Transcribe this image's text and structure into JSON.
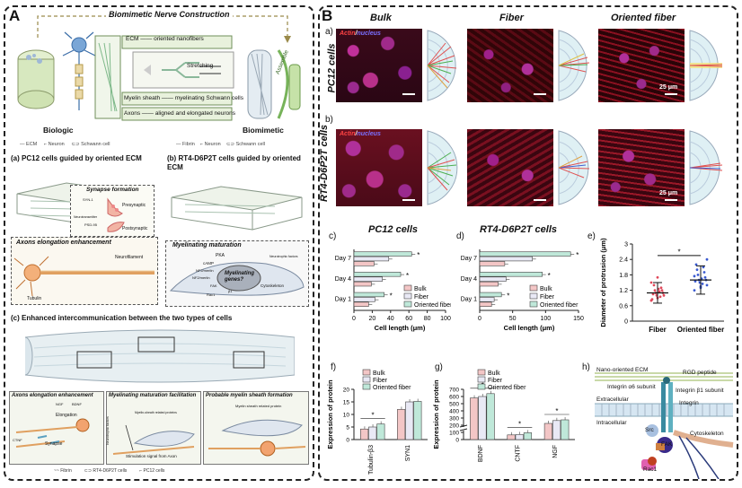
{
  "panelA": {
    "letter": "A",
    "banner": "Biomimetic Nerve Construction",
    "legend_top": [
      {
        "k": "ECM",
        "v": "oriented nanofibers"
      },
      {
        "k": "Myelin sheath",
        "v": "myelinating Schwann cells"
      },
      {
        "k": "Axons",
        "v": "aligned and elongated neurons"
      }
    ],
    "stretching": "Stretching",
    "assemble": "Assemble",
    "biologic": "Biologic",
    "biomimetic": "Biomimetic",
    "legend_left": [
      "ECM",
      "Neuron",
      "Schwann cell"
    ],
    "legend_right": [
      "Fibrin",
      "Neuron",
      "Schwann cell"
    ],
    "sub_a": "(a) PC12 cells guided by oriented ECM",
    "sub_b": "(b) RT4-D6P2T cells guided by oriented ECM",
    "synapse": {
      "title": "Synapse formation",
      "labels": [
        "SYN-1",
        "Presynaptic",
        "Neurotransmitter",
        "PSD-95",
        "Postsynaptic"
      ]
    },
    "axons": {
      "title": "Axons elongation enhancement",
      "labels": [
        "Neurofilament",
        "Tubulin"
      ]
    },
    "myel": {
      "title": "Myelinating maturation",
      "labels": [
        "PKA",
        "cAMP",
        "NF2/merlin",
        "NF2/merlin",
        "Neurotrophic factors",
        "Myelinating genes?",
        "FAK",
        "Cytoskeleton",
        "Rac1",
        "β1"
      ]
    },
    "sub_c": "(c) Enhanced intercommunication between the two types of cells",
    "bottom_boxes": [
      {
        "title": "Axons elongation enhancement",
        "labels": [
          "NGF",
          "BDNF",
          "Elongation",
          "Synapse",
          "CTNF"
        ]
      },
      {
        "title": "Myelinating maturation facilitation",
        "labels": [
          "Myelin-sheath related proteins",
          "Neurotrophic factors",
          "Stimulation signal from Axon"
        ]
      },
      {
        "title": "Probable myelin sheath formation",
        "labels": [
          "Myelin sheath related protein"
        ]
      }
    ],
    "legend_bottom": [
      "Fibrin",
      "RT4-D6P2T cells",
      "PC12 cells"
    ]
  },
  "panelB": {
    "letter": "B",
    "a_label": "a)",
    "b_label": "b)",
    "col_titles": [
      "Bulk",
      "Fiber",
      "Oriented fiber"
    ],
    "stain_actin": "Actin",
    "stain_sep": "/",
    "stain_nucleus": "nucleus",
    "row_titles": [
      "PC12 cells",
      "RT4-D6P2T cells"
    ],
    "scale": "25 μm",
    "colors": {
      "actin": "#e23b3b",
      "nucleus": "#5b4fe0",
      "bulk": "#f3c6c6",
      "fiber": "#e9e9f5",
      "oriented": "#bfe8d9"
    }
  },
  "chart_data": [
    {
      "id": "c",
      "type": "bar",
      "orientation": "horizontal",
      "panel": "c)",
      "title": "PC12 cells",
      "xlabel": "Cell length (μm)",
      "xlim": [
        0,
        100
      ],
      "xticks": [
        0,
        20,
        40,
        60,
        80,
        100
      ],
      "categories": [
        "Day 7",
        "Day 4",
        "Day 1"
      ],
      "series": [
        {
          "name": "Bulk",
          "values": [
            22,
            19,
            16
          ]
        },
        {
          "name": "Fiber",
          "values": [
            38,
            31,
            23
          ]
        },
        {
          "name": "Oriented fiber",
          "values": [
            63,
            51,
            33
          ]
        }
      ],
      "significance": [
        "*",
        "*",
        "*"
      ]
    },
    {
      "id": "d",
      "type": "bar",
      "orientation": "horizontal",
      "panel": "d)",
      "title": "RT4-D6P2T cells",
      "xlabel": "Cell length (μm)",
      "xlim": [
        0,
        150
      ],
      "xticks": [
        0,
        50,
        100,
        150
      ],
      "categories": [
        "Day 7",
        "Day 4",
        "Day 1"
      ],
      "series": [
        {
          "name": "Bulk",
          "values": [
            38,
            28,
            18
          ]
        },
        {
          "name": "Fiber",
          "values": [
            80,
            40,
            22
          ]
        },
        {
          "name": "Oriented fiber",
          "values": [
            138,
            95,
            33
          ]
        }
      ],
      "significance": [
        "*",
        "*",
        "*"
      ]
    },
    {
      "id": "e",
      "type": "scatter",
      "panel": "e)",
      "ylabel": "Diameter of protrusion (μm)",
      "ylim": [
        0,
        3
      ],
      "yticks": [
        "0",
        "0.6",
        "1.2",
        "1.8",
        "2.4",
        "3"
      ],
      "categories": [
        "Fiber",
        "Oriented fiber"
      ],
      "means": [
        1.1,
        1.6
      ],
      "sd": [
        0.4,
        0.55
      ],
      "points": {
        "Fiber": [
          0.8,
          0.9,
          1.0,
          1.0,
          1.1,
          1.1,
          1.2,
          1.2,
          1.3,
          1.4,
          0.95,
          1.05,
          1.15,
          0.85,
          1.25,
          1.5,
          1.7
        ],
        "Oriented fiber": [
          1.2,
          1.3,
          1.4,
          1.5,
          1.6,
          1.6,
          1.7,
          1.8,
          1.9,
          2.0,
          2.1,
          2.2,
          1.45,
          1.55,
          1.65,
          1.75,
          1.35,
          2.4
        ]
      },
      "significance": "*"
    },
    {
      "id": "f",
      "type": "bar",
      "panel": "f)",
      "ylabel": "Expression of protein",
      "ylim": [
        0,
        20
      ],
      "yticks": [
        0,
        5,
        10,
        15,
        20
      ],
      "categories": [
        "Tubulin-β3",
        "SYN1"
      ],
      "series": [
        {
          "name": "Bulk",
          "values": [
            4.2,
            12
          ]
        },
        {
          "name": "Fiber",
          "values": [
            5.0,
            15
          ]
        },
        {
          "name": "Oriented fiber",
          "values": [
            6.2,
            15.2
          ]
        }
      ],
      "significance": [
        "*",
        ""
      ]
    },
    {
      "id": "g",
      "type": "bar",
      "panel": "g)",
      "ylabel": "Expression of protein",
      "ylim": [
        0,
        700
      ],
      "yticks": [
        0,
        100,
        200,
        300,
        400,
        500,
        600,
        700
      ],
      "categories": [
        "BDNF",
        "CNTF",
        "NGF"
      ],
      "series": [
        {
          "name": "Bulk",
          "values": [
            580,
            65,
            225
          ]
        },
        {
          "name": "Fiber",
          "values": [
            600,
            70,
            265
          ]
        },
        {
          "name": "Oriented fiber",
          "values": [
            640,
            95,
            275
          ]
        }
      ],
      "significance": [
        "*",
        "*",
        "*"
      ]
    }
  ],
  "legend": [
    "Bulk",
    "Fiber",
    "Oriented fiber"
  ],
  "panelH": {
    "letter": "h)",
    "labels": [
      "Nano-oriented ECM",
      "RGD peptide",
      "Integrin α6 subunit",
      "Integrin β1 subunit",
      "Integrin",
      "Extracellular",
      "Intracellular",
      "Src",
      "FAK",
      "Cytoskeleton",
      "Rac1"
    ]
  }
}
